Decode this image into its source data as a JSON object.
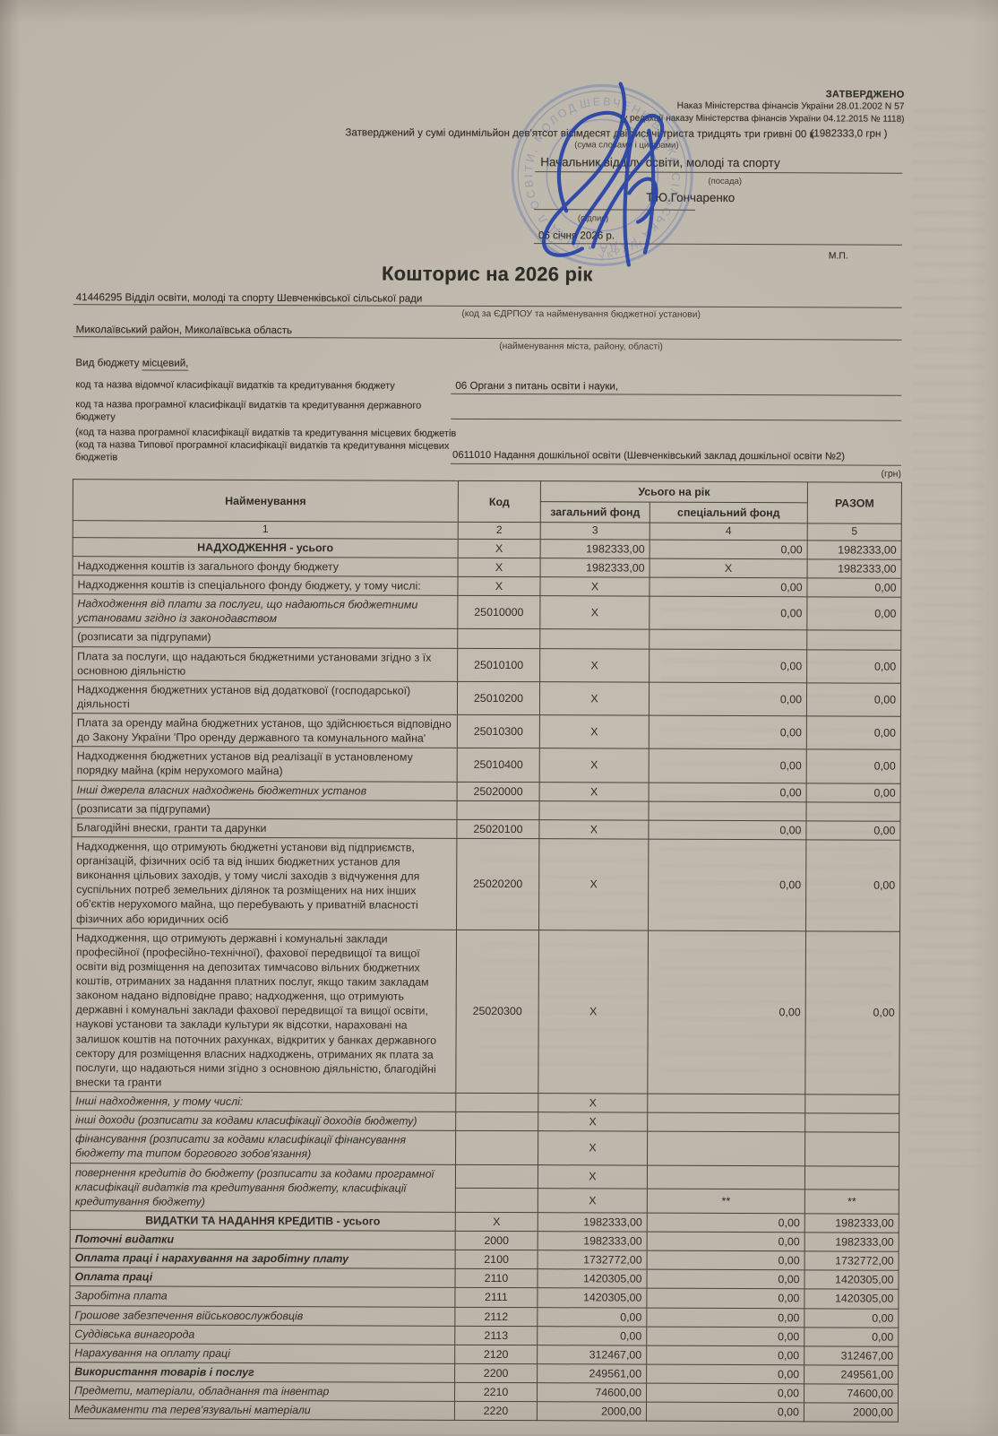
{
  "approval": {
    "approved_label": "ЗАТВЕРДЖЕНО",
    "order_line": "Наказ Міністерства фінансів України 28.01.2002  N 57",
    "edition_line": "(у редакції наказу Міністерства фінансів України 04.12.2015 № 1118)",
    "sum_text": "Затверджений у сумі  одинмільйон дев'ятсот вісімдесят дві тисячі триста тридцять три гривні 00 к",
    "sum_amount": "(1982333,0 грн )",
    "sum_caption": "(сума словами і цифрами)"
  },
  "signatory": {
    "position": "Начальник відділу освіти, молоді та спорту",
    "position_caption": "(посада)",
    "name": "Т.Ю.Гончаренко",
    "sign_caption": "(підпис)",
    "date": "06 січня 2026 р.",
    "seal_mark": "М.П."
  },
  "stamp": {
    "ring_text": "ШЕВЧЕНКІВСЬКА СІЛЬСЬКА РАДА  •  ВІДДІЛ ОСВІТИ, МОЛОДІ ТА СПОРТУ  •"
  },
  "doc": {
    "title": "Кошторис на  2026 рік",
    "org_line": "41446295  Відділ освіти, молоді та спорту Шевченківської сільської ради",
    "org_caption": "(код за ЄДРПОУ та найменування бюджетної установи)",
    "location_line": "Миколаївський  район, Миколаївська область",
    "location_caption": "(найменування міста, району, області)",
    "budget_type_label": "Вид бюджету",
    "budget_type_value": "місцевий,",
    "class1_label": "код та назва відомчої класифікації видатків та кредитування бюджету",
    "class1_value": "06  Органи з питань освіти і науки,",
    "class2_label": "код та назва програмної класифікації видатків та кредитування державного бюджету",
    "class3_label": "(код та назва програмної класифікації видатків та кредитування місцевих бюджетів (код та назва Типової програмної класифікації видатків та кредитування місцевих бюджетів",
    "class3_value": "0611010 Надання  дошкільної  освіти  (Шевченківський заклад дошкільної освіти №2)",
    "currency_note": "(грн)"
  },
  "table": {
    "header": {
      "name": "Найменування",
      "code": "Код",
      "year_total": "Усього на рік",
      "general_fund": "загальний фонд",
      "special_fund": "спеціальний фонд",
      "total": "РАЗОМ",
      "col_numbers": [
        "1",
        "2",
        "3",
        "4",
        "5"
      ]
    },
    "rows": [
      {
        "n": "НАДХОДЖЕННЯ - усього",
        "c": "X",
        "g": "1982333,00",
        "s": "0,00",
        "t": "1982333,00",
        "cls": "section"
      },
      {
        "n": "Надходження коштів із загального фонду бюджету",
        "c": "X",
        "g": "1982333,00",
        "s": "X",
        "t": "1982333,00"
      },
      {
        "n": "Надходження коштів із спеціального фонду бюджету, у тому числі:",
        "c": "X",
        "g": "X",
        "s": "0,00",
        "t": "0,00"
      },
      {
        "n": "Надходження від плати за послуги, що надаються бюджетними установами згідно із законодавством",
        "c": "25010000",
        "g": "X",
        "s": "0,00",
        "t": "0,00",
        "cls": "italic"
      },
      {
        "n": "(розписати за підгрупами)",
        "c": "",
        "g": "",
        "s": "",
        "t": ""
      },
      {
        "n": "Плата за послуги, що надаються бюджетними установами згідно з їх основною діяльністю",
        "c": "25010100",
        "g": "X",
        "s": "0,00",
        "t": "0,00"
      },
      {
        "n": "Надходження бюджетних установ від додаткової (господарської) діяльності",
        "c": "25010200",
        "g": "X",
        "s": "0,00",
        "t": "0,00"
      },
      {
        "n": "Плата за оренду майна бюджетних установ, що здійснюється відповідно до Закону України 'Про оренду державного та комунального майна'",
        "c": "25010300",
        "g": "X",
        "s": "0,00",
        "t": "0,00"
      },
      {
        "n": "Надходження бюджетних установ від реалізації в установленому порядку майна (крім нерухомого майна)",
        "c": "25010400",
        "g": "X",
        "s": "0,00",
        "t": "0,00"
      },
      {
        "n": "Інші джерела власних надходжень бюджетних установ",
        "c": "25020000",
        "g": "X",
        "s": "0,00",
        "t": "0,00",
        "cls": "italic"
      },
      {
        "n": "(розписати за підгрупами)",
        "c": "",
        "g": "",
        "s": "",
        "t": ""
      },
      {
        "n": "Благодійні внески, гранти та дарунки",
        "c": "25020100",
        "g": "X",
        "s": "0,00",
        "t": "0,00"
      },
      {
        "n": "Надходження, що отримують бюджетні установи від підприємств, організацій, фізичних осіб та від інших бюджетних установ для виконання цільових заходів, у тому числі заходів з відчуження для суспільних потреб земельних ділянок та розміщених на них інших об'єктів нерухомого майна, що перебувають у приватній власності фізичних або юридичних осіб",
        "c": "25020200",
        "g": "X",
        "s": "0,00",
        "t": "0,00"
      },
      {
        "n": "Надходження, що отримують державні і комунальні заклади професійної (професійно-технічної), фахової передвищої та вищої освіти від розміщення на депозитах тимчасово вільних бюджетних коштів, отриманих за надання платних послуг, якщо таким закладам законом надано відповідне право; надходження, що отримують державні і комунальні заклади фахової передвищої та вищої освіти, наукові установи та заклади культури як відсотки, нараховані на залишок коштів на поточних рахунках, відкритих у банках державного сектору для розміщення власних надходжень, отриманих як плата за послуги, що надаються ними згідно з основною діяльністю, благодійні внески та гранти",
        "c": "25020300",
        "g": "X",
        "s": "0,00",
        "t": "0,00"
      },
      {
        "n": "Інші надходження, у тому числі:",
        "c": "",
        "g": "X",
        "s": "",
        "t": "",
        "cls": "italic"
      },
      {
        "n": "інші доходи (розписати за кодами класифікації доходів бюджету)",
        "c": "",
        "g": "X",
        "s": "",
        "t": "",
        "cls": "italic"
      },
      {
        "n": "фінансування (розписати за кодами класифікації фінансування бюджету та типом  боргового зобов'язання)",
        "c": "",
        "g": "X",
        "s": "",
        "t": "",
        "cls": "italic"
      },
      {
        "n": "повернення кредитів до бюджету (розписати за кодами програмної класифікації видатків та кредитування бюджету, класифікації кредитування бюджету)",
        "cls": "italic",
        "split": [
          {
            "c": "",
            "g": "X",
            "s": "",
            "t": ""
          },
          {
            "c": "",
            "g": "X",
            "s": "**",
            "t": "**"
          }
        ]
      },
      {
        "n": "ВИДАТКИ ТА НАДАННЯ КРЕДИТІВ - усього",
        "c": "X",
        "g": "1982333,00",
        "s": "0,00",
        "t": "1982333,00",
        "cls": "section"
      },
      {
        "n": "Поточні видатки",
        "c": "2000",
        "g": "1982333,00",
        "s": "0,00",
        "t": "1982333,00",
        "cls": "bold-italic"
      },
      {
        "n": "Оплата праці і нарахування на заробітну плату",
        "c": "2100",
        "g": "1732772,00",
        "s": "0,00",
        "t": "1732772,00",
        "cls": "bold-italic"
      },
      {
        "n": "Оплата праці",
        "c": "2110",
        "g": "1420305,00",
        "s": "0,00",
        "t": "1420305,00",
        "cls": "bold-italic"
      },
      {
        "n": "Заробітна плата",
        "c": "2111",
        "g": "1420305,00",
        "s": "0,00",
        "t": "1420305,00",
        "cls": "italic"
      },
      {
        "n": "Грошове забезпечення військовослужбовців",
        "c": "2112",
        "g": "0,00",
        "s": "0,00",
        "t": "0,00",
        "cls": "italic"
      },
      {
        "n": "Суддівська винагорода",
        "c": "2113",
        "g": "0,00",
        "s": "0,00",
        "t": "0,00",
        "cls": "italic"
      },
      {
        "n": "Нарахування на оплату праці",
        "c": "2120",
        "g": "312467,00",
        "s": "0,00",
        "t": "312467,00",
        "cls": "italic"
      },
      {
        "n": "Використання товарів і послуг",
        "c": "2200",
        "g": "249561,00",
        "s": "0,00",
        "t": "249561,00",
        "cls": "bold-italic"
      },
      {
        "n": "Предмети, матеріали, обладнання та інвентар",
        "c": "2210",
        "g": "74600,00",
        "s": "0,00",
        "t": "74600,00",
        "cls": "italic"
      },
      {
        "n": "Медикаменти та перев'язувальні матеріали",
        "c": "2220",
        "g": "2000,00",
        "s": "0,00",
        "t": "2000,00",
        "cls": "italic"
      }
    ]
  }
}
